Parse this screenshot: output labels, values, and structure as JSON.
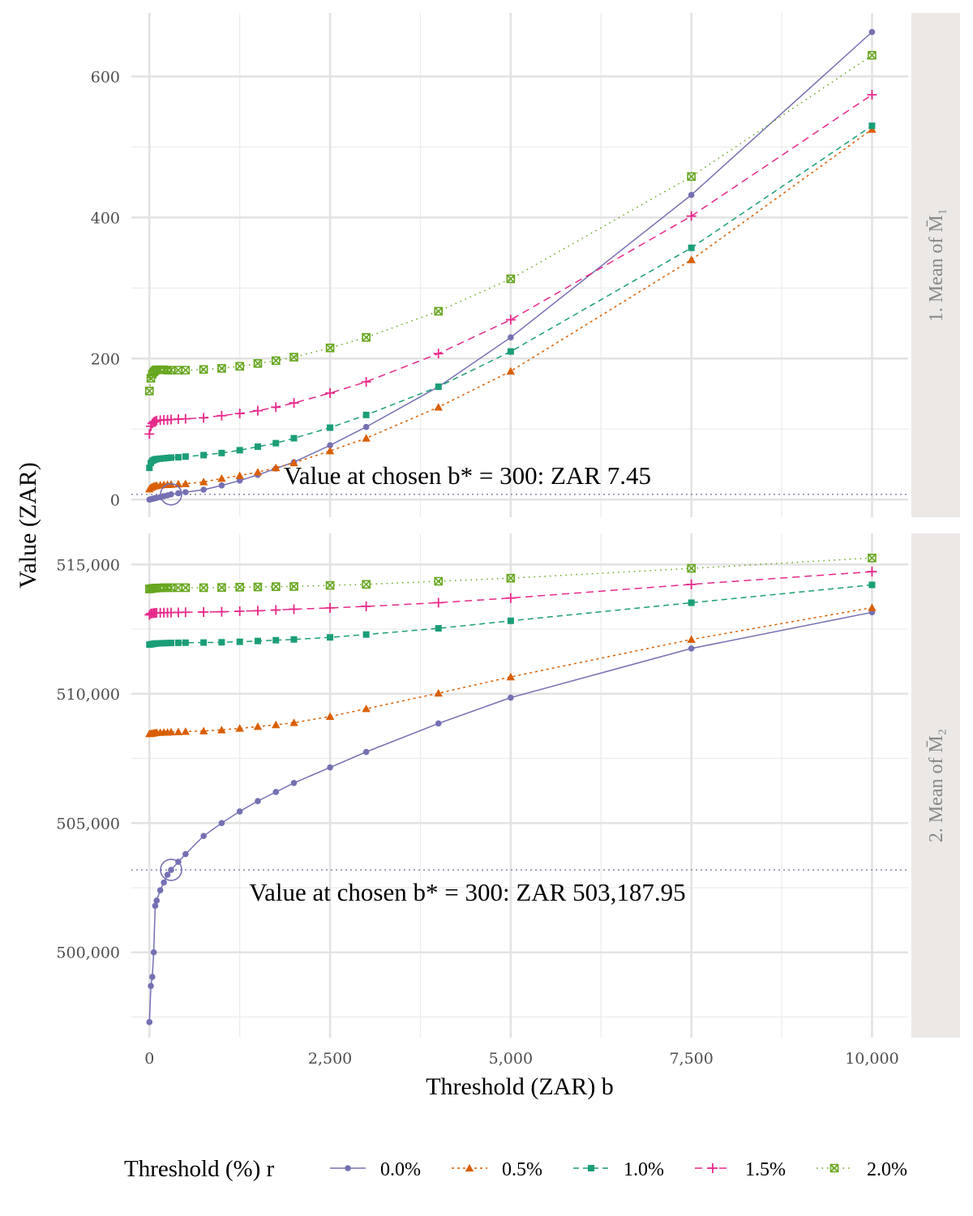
{
  "chart_data": {
    "type": "line",
    "xlabel": "Threshold (ZAR) b",
    "ylabel": "Value (ZAR)",
    "x_ticks": [
      "0",
      "2,500",
      "5,000",
      "7,500",
      "10,000"
    ],
    "xlim": [
      -250,
      10500
    ],
    "legend": {
      "title": "Threshold (%) r",
      "position": "bottom",
      "items": [
        "0.0%",
        "0.5%",
        "1.0%",
        "1.5%",
        "2.0%"
      ]
    },
    "series_style": [
      {
        "color": "#7570b3",
        "shape": "circle",
        "dash": ""
      },
      {
        "color": "#d95f02",
        "shape": "triangle",
        "dash": "3,4"
      },
      {
        "color": "#1b9e77",
        "shape": "square",
        "dash": "7,5"
      },
      {
        "color": "#e7298a",
        "shape": "plus",
        "dash": "9,6"
      },
      {
        "color": "#66a61e",
        "shape": "boxx",
        "dash": "1.5,5"
      }
    ],
    "panels": [
      {
        "strip": "1.  Mean of M̄₁",
        "ylim": [
          -25,
          690
        ],
        "y_ticks": [
          0,
          200,
          400,
          600
        ],
        "y_tick_labels": [
          "0",
          "200",
          "400",
          "600"
        ],
        "ref_y": 7.45,
        "annotation": "Value at chosen b* = 300:  ZAR 7.45",
        "series": [
          {
            "name": "0.0%",
            "x": [
              0,
              20,
              40,
              60,
              80,
              100,
              150,
              200,
              250,
              300,
              400,
              500,
              750,
              1000,
              1250,
              1500,
              1750,
              2000,
              2500,
              3000,
              4000,
              5000,
              7500,
              10000
            ],
            "y": [
              0,
              0.5,
              1,
              1.5,
              2,
              2.5,
              3.5,
              4.8,
              6,
              7.45,
              9,
              10.5,
              14,
              20,
              27,
              35,
              44,
              53,
              77,
              103,
              160,
              230,
              432,
              663
            ]
          },
          {
            "name": "0.5%",
            "x": [
              0,
              20,
              40,
              60,
              80,
              100,
              150,
              200,
              250,
              300,
              400,
              500,
              750,
              1000,
              1250,
              1500,
              1750,
              2000,
              2500,
              3000,
              4000,
              5000,
              7500,
              10000
            ],
            "y": [
              15,
              17,
              18,
              19,
              19.5,
              20,
              20.5,
              21,
              21.2,
              21.5,
              22,
              22.5,
              25,
              30,
              34,
              39,
              45,
              52,
              69,
              87,
              131,
              182,
              340,
              525
            ]
          },
          {
            "name": "1.0%",
            "x": [
              0,
              20,
              40,
              60,
              80,
              100,
              150,
              200,
              250,
              300,
              400,
              500,
              750,
              1000,
              1250,
              1500,
              1750,
              2000,
              2500,
              3000,
              4000,
              5000,
              7500,
              10000
            ],
            "y": [
              45,
              52,
              55,
              56,
              57,
              57.5,
              58,
              58.5,
              59,
              59.5,
              60,
              61,
              63,
              66,
              70,
              75,
              80,
              87,
              102,
              120,
              160,
              210,
              357,
              530
            ]
          },
          {
            "name": "1.5%",
            "x": [
              0,
              20,
              40,
              60,
              80,
              100,
              150,
              200,
              250,
              300,
              400,
              500,
              750,
              1000,
              1250,
              1500,
              1750,
              2000,
              2500,
              3000,
              4000,
              5000,
              7500,
              10000
            ],
            "y": [
              93,
              104,
              108,
              110,
              111,
              112,
              112.5,
              113,
              113,
              113.5,
              114,
              114.5,
              116,
              119,
              122,
              126,
              131,
              137,
              151,
              167,
              207,
              255,
              402,
              574
            ]
          },
          {
            "name": "2.0%",
            "x": [
              0,
              20,
              40,
              60,
              80,
              100,
              150,
              200,
              250,
              300,
              400,
              500,
              750,
              1000,
              1250,
              1500,
              1750,
              2000,
              2500,
              3000,
              4000,
              5000,
              7500,
              10000
            ],
            "y": [
              154,
              172,
              178,
              181,
              183,
              184,
              184,
              184,
              183.5,
              183.5,
              183.5,
              183.5,
              184.5,
              186,
              189,
              193,
              197,
              202,
              215,
              230,
              267,
              313,
              458,
              630
            ]
          }
        ]
      },
      {
        "strip": "2.  Mean of M̄₂",
        "ylim": [
          496700,
          516200
        ],
        "y_ticks": [
          500000,
          505000,
          510000,
          515000
        ],
        "y_tick_labels": [
          "500,000",
          "505,000",
          "510,000",
          "515,000"
        ],
        "ref_y": 503187.95,
        "annotation": "Value at chosen b* = 300:  ZAR 503,187.95",
        "series": [
          {
            "name": "0.0%",
            "x": [
              0,
              20,
              40,
              60,
              80,
              100,
              150,
              200,
              250,
              300,
              400,
              500,
              750,
              1000,
              1250,
              1500,
              1750,
              2000,
              2500,
              3000,
              4000,
              5000,
              7500,
              10000
            ],
            "y": [
              497300,
              498700,
              499050,
              500000,
              501800,
              502000,
              502400,
              502700,
              503000,
              503187.95,
              503500,
              503800,
              504500,
              505000,
              505450,
              505850,
              506200,
              506550,
              507150,
              507750,
              508850,
              509850,
              511750,
              513150
            ]
          },
          {
            "name": "0.5%",
            "x": [
              0,
              20,
              40,
              60,
              80,
              100,
              150,
              200,
              250,
              300,
              400,
              500,
              750,
              1000,
              1250,
              1500,
              1750,
              2000,
              2500,
              3000,
              4000,
              5000,
              7500,
              10000
            ],
            "y": [
              508450,
              508460,
              508470,
              508480,
              508490,
              508500,
              508500,
              508510,
              508510,
              508520,
              508530,
              508540,
              508560,
              508600,
              508660,
              508730,
              508800,
              508880,
              509120,
              509420,
              510020,
              510650,
              512100,
              513330
            ]
          },
          {
            "name": "1.0%",
            "x": [
              0,
              20,
              40,
              60,
              80,
              100,
              150,
              200,
              250,
              300,
              400,
              500,
              750,
              1000,
              1250,
              1500,
              1750,
              2000,
              2500,
              3000,
              4000,
              5000,
              7500,
              10000
            ],
            "y": [
              511900,
              511910,
              511920,
              511930,
              511940,
              511945,
              511950,
              511955,
              511960,
              511965,
              511970,
              511975,
              511980,
              511990,
              512010,
              512040,
              512070,
              512100,
              512180,
              512290,
              512530,
              512820,
              513520,
              514210
            ]
          },
          {
            "name": "1.5%",
            "x": [
              0,
              20,
              40,
              60,
              80,
              100,
              150,
              200,
              250,
              300,
              400,
              500,
              750,
              1000,
              1250,
              1500,
              1750,
              2000,
              2500,
              3000,
              4000,
              5000,
              7500,
              10000
            ],
            "y": [
              513050,
              513100,
              513110,
              513120,
              513125,
              513130,
              513130,
              513135,
              513135,
              513140,
              513145,
              513150,
              513160,
              513170,
              513190,
              513210,
              513240,
              513270,
              513320,
              513380,
              513520,
              513700,
              514230,
              514720
            ]
          },
          {
            "name": "2.0%",
            "x": [
              0,
              20,
              40,
              60,
              80,
              100,
              150,
              200,
              250,
              300,
              400,
              500,
              750,
              1000,
              1250,
              1500,
              1750,
              2000,
              2500,
              3000,
              4000,
              5000,
              7500,
              10000
            ],
            "y": [
              514050,
              514060,
              514070,
              514080,
              514085,
              514090,
              514095,
              514100,
              514100,
              514100,
              514100,
              514100,
              514100,
              514110,
              514120,
              514130,
              514140,
              514150,
              514190,
              514230,
              514350,
              514470,
              514850,
              515250
            ]
          }
        ]
      }
    ]
  }
}
